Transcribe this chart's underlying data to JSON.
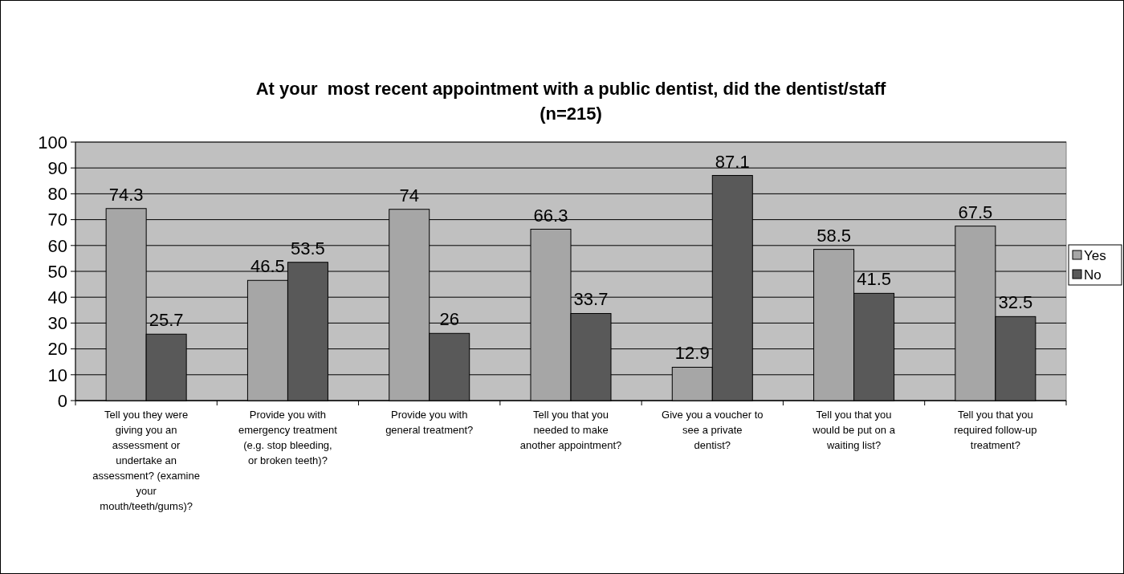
{
  "chart_data": {
    "type": "bar",
    "title": "At your  most recent appointment with a public dentist, did the dentist/staff\n(n=215)",
    "categories": [
      "Tell you they were giving you an assessment or undertake an assessment? (examine your mouth/teeth/gums)?",
      "Provide you with emergency treatment (e.g. stop bleeding, or broken teeth)?",
      "Provide you with general treatment?",
      "Tell you that you needed to make another appointment?",
      "Give you a voucher to see a private dentist?",
      "Tell you that you would be put on a waiting list?",
      "Tell you that you required follow-up treatment?"
    ],
    "series": [
      {
        "name": "Yes",
        "color": "#a6a6a6",
        "values": [
          74.3,
          46.5,
          74,
          66.3,
          12.9,
          58.5,
          67.5
        ]
      },
      {
        "name": "No",
        "color": "#595959",
        "values": [
          25.7,
          53.5,
          26,
          33.7,
          87.1,
          41.5,
          32.5
        ]
      }
    ],
    "ylim": [
      0,
      100
    ],
    "yticks": [
      0,
      10,
      20,
      30,
      40,
      50,
      60,
      70,
      80,
      90,
      100
    ],
    "grid": "y",
    "legend": "right",
    "data_labels": true
  }
}
